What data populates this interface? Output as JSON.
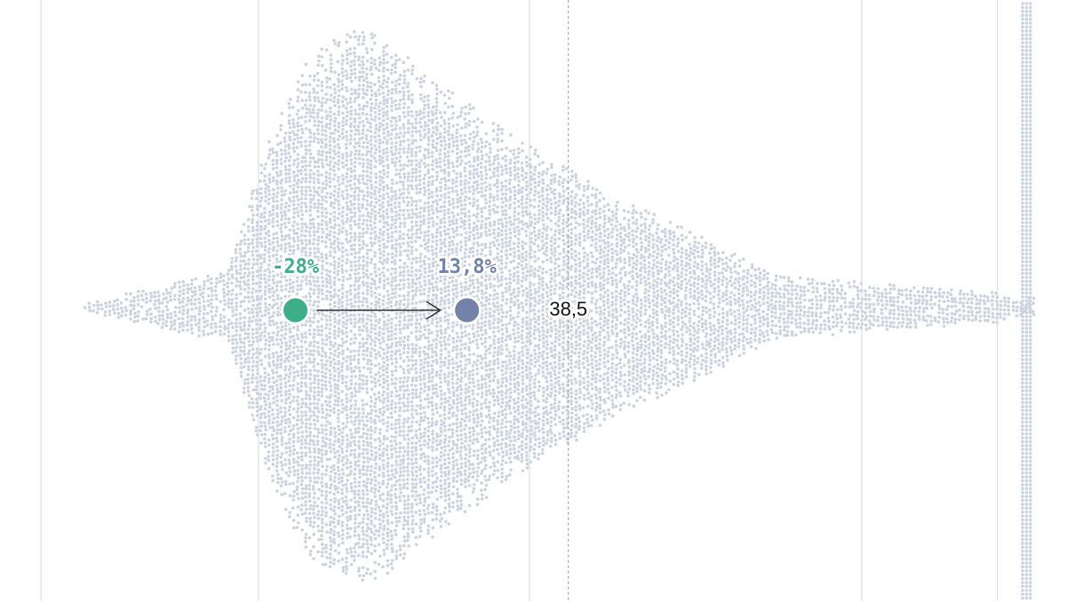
{
  "colors": {
    "swarm": "#ccd3de",
    "start": "#3dae87",
    "end": "#7282a8",
    "arrow": "#333333",
    "grid": "#d9d9d9",
    "reference": "#9a9a9a"
  },
  "chart_data": {
    "type": "scatter",
    "title": "",
    "xlabel": "",
    "ylabel": "",
    "xlim": [
      -100,
      160
    ],
    "grid": true,
    "gridlines_x": [
      -90,
      -37,
      29,
      110,
      143
    ],
    "reference_line": {
      "x": 38.5,
      "label": "38,5"
    },
    "highlight": {
      "from": {
        "x": -28,
        "label": "-28%"
      },
      "to": {
        "x": 13.8,
        "label": "13,8%"
      }
    }
  }
}
